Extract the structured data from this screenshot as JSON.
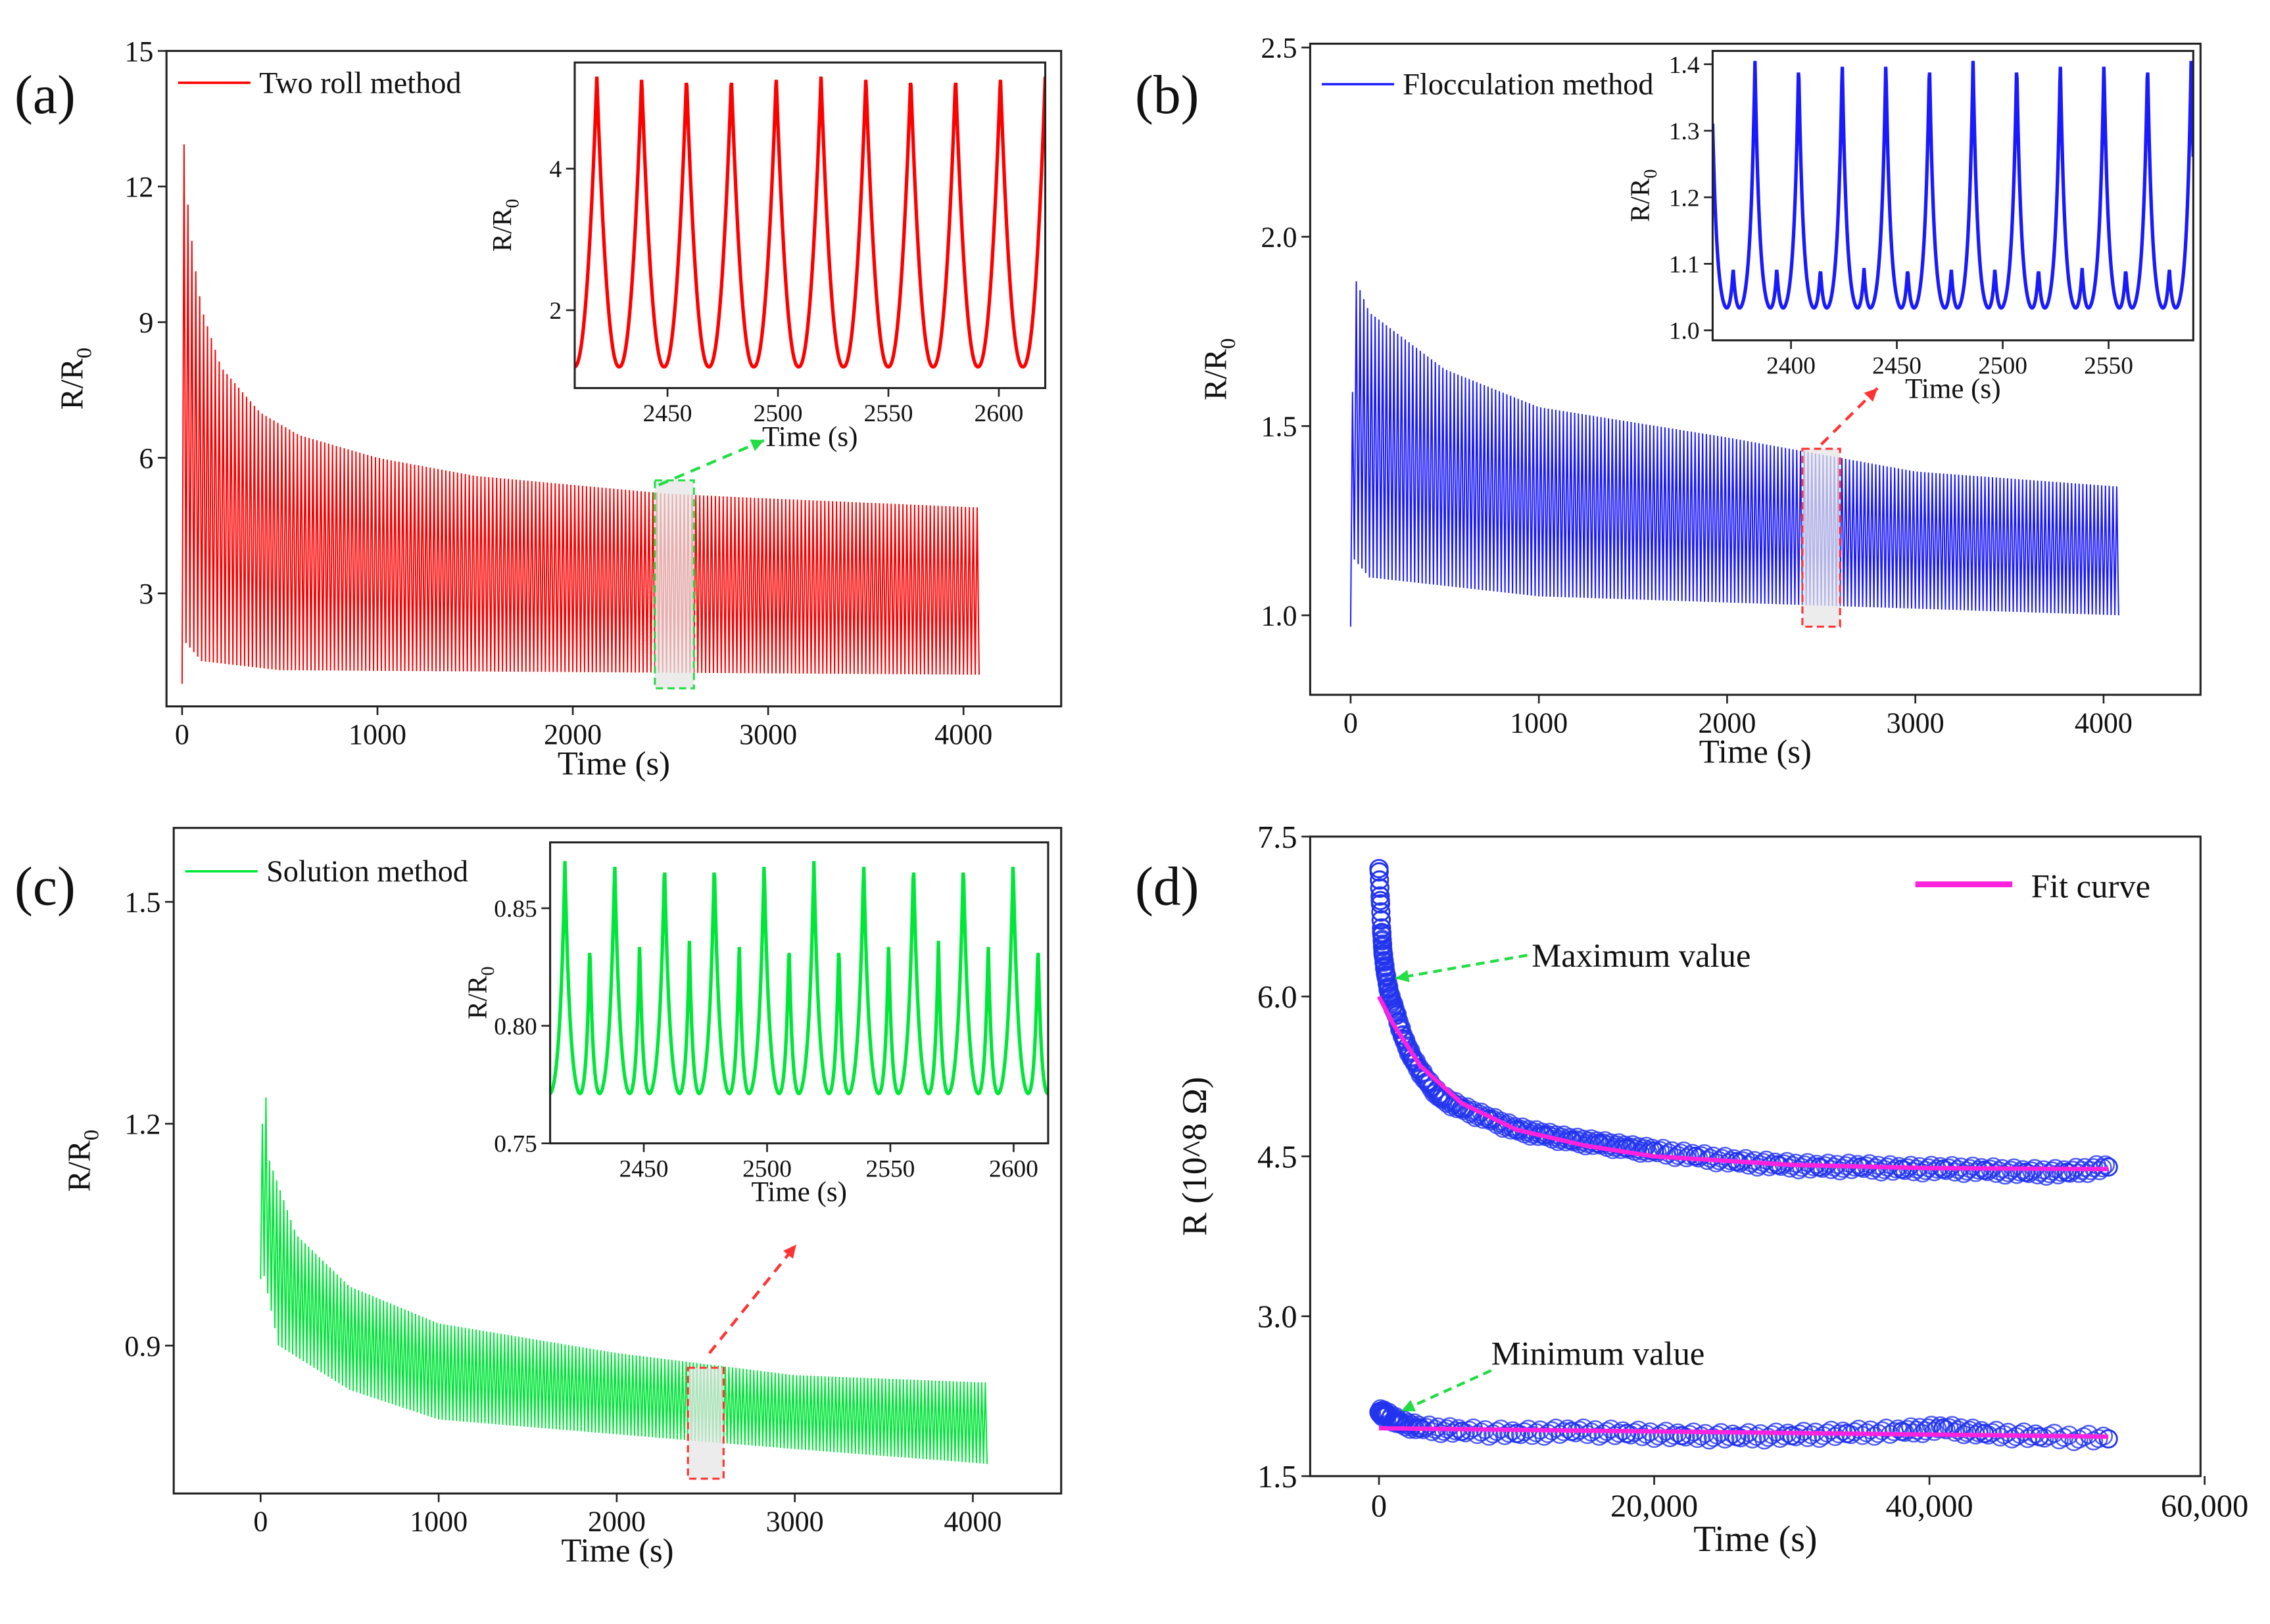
{
  "chart_data": [
    {
      "panel_label": "(a)",
      "type": "line",
      "legend": "Two roll method",
      "color": "#ff0000",
      "xlabel": "Time (s)",
      "ylabel": "R/R",
      "ylabel_sub": "0",
      "xlim": [
        -80,
        4500
      ],
      "ylim": [
        0.5,
        15
      ],
      "xticks": [
        0,
        1000,
        2000,
        3000,
        4000
      ],
      "xtick_labels": [
        "0",
        "1000",
        "2000",
        "3000",
        "4000"
      ],
      "yticks": [
        3,
        6,
        9,
        12,
        15
      ],
      "ytick_labels": [
        "3",
        "6",
        "9",
        "12",
        "15"
      ],
      "period_s": 20,
      "t_end": 4080,
      "upper_envelope": [
        [
          0,
          13.6
        ],
        [
          30,
          11.6
        ],
        [
          60,
          10.4
        ],
        [
          100,
          9.3
        ],
        [
          200,
          8.0
        ],
        [
          400,
          7.0
        ],
        [
          600,
          6.5
        ],
        [
          1000,
          6.0
        ],
        [
          1500,
          5.6
        ],
        [
          2000,
          5.4
        ],
        [
          2500,
          5.2
        ],
        [
          3000,
          5.1
        ],
        [
          4080,
          4.9
        ]
      ],
      "lower_envelope": [
        [
          0,
          1.0
        ],
        [
          20,
          1.9
        ],
        [
          100,
          1.5
        ],
        [
          500,
          1.3
        ],
        [
          4080,
          1.2
        ]
      ],
      "highlight": {
        "x": [
          2420,
          2620
        ],
        "y": [
          0.9,
          5.5
        ],
        "color": "#22dd44"
      },
      "inset": {
        "xlabel": "Time (s)",
        "ylabel": "R/R",
        "ylabel_sub": "0",
        "xlim": [
          2408,
          2621
        ],
        "ylim": [
          0.9,
          5.5
        ],
        "xticks": [
          2450,
          2500,
          2550,
          2600
        ],
        "xtick_labels": [
          "2450",
          "2500",
          "2550",
          "2600"
        ],
        "yticks": [
          2,
          4
        ],
        "ytick_labels": [
          "2",
          "4"
        ],
        "first_peak": 2418,
        "period_s": 20.3,
        "peak": 5.3,
        "trough": 1.2,
        "secondary_peak": null
      }
    },
    {
      "panel_label": "(b)",
      "type": "line",
      "legend": "Flocculation method",
      "color": "#1a1aff",
      "xlabel": "Time (s)",
      "ylabel": "R/R",
      "ylabel_sub": "0",
      "xlim": [
        -215,
        4515
      ],
      "ylim": [
        0.79,
        2.51
      ],
      "xticks": [
        0,
        1000,
        2000,
        3000,
        4000
      ],
      "xtick_labels": [
        "0",
        "1000",
        "2000",
        "3000",
        "4000"
      ],
      "yticks": [
        1.0,
        1.5,
        2.0,
        2.5
      ],
      "ytick_labels": [
        "1.0",
        "1.5",
        "2.0",
        "2.5"
      ],
      "period_s": 20,
      "t_end": 4080,
      "upper_envelope": [
        [
          0,
          0.97
        ],
        [
          15,
          1.9
        ],
        [
          100,
          1.8
        ],
        [
          500,
          1.65
        ],
        [
          1000,
          1.55
        ],
        [
          2000,
          1.47
        ],
        [
          3000,
          1.38
        ],
        [
          4080,
          1.34
        ]
      ],
      "lower_envelope": [
        [
          0,
          0.97
        ],
        [
          15,
          1.15
        ],
        [
          100,
          1.1
        ],
        [
          1000,
          1.05
        ],
        [
          4080,
          1.0
        ]
      ],
      "highlight": {
        "x": [
          2400,
          2600
        ],
        "y": [
          0.97,
          1.44
        ],
        "color": "#ff3333"
      },
      "inset": {
        "xlabel": "Time (s)",
        "ylabel": "R/R",
        "ylabel_sub": "0",
        "xlim": [
          2363,
          2590
        ],
        "ylim": [
          0.985,
          1.42
        ],
        "xticks": [
          2400,
          2450,
          2500,
          2550
        ],
        "xtick_labels": [
          "2400",
          "2450",
          "2500",
          "2550"
        ],
        "yticks": [
          1.0,
          1.1,
          1.2,
          1.3,
          1.4
        ],
        "ytick_labels": [
          "1.0",
          "1.1",
          "1.2",
          "1.3",
          "1.4"
        ],
        "first_peak": 2383,
        "period_s": 20.6,
        "peak": 1.405,
        "trough": 1.01,
        "secondary_peak": 1.09
      }
    },
    {
      "panel_label": "(c)",
      "type": "line",
      "legend": "Solution method",
      "color": "#00e639",
      "xlabel": "Time (s)",
      "ylabel": "R/R",
      "ylabel_sub": "0",
      "xlim": [
        -488,
        4496
      ],
      "ylim": [
        0.7,
        1.6
      ],
      "xticks": [
        0,
        1000,
        2000,
        3000,
        4000
      ],
      "xtick_labels": [
        "0",
        "1000",
        "2000",
        "3000",
        "4000"
      ],
      "yticks": [
        0.9,
        1.2,
        1.5
      ],
      "ytick_labels": [
        "0.9",
        "1.2",
        "1.5"
      ],
      "period_s": 20,
      "t_end": 4080,
      "upper_envelope": [
        [
          0,
          1.0
        ],
        [
          15,
          1.3
        ],
        [
          50,
          1.15
        ],
        [
          200,
          1.05
        ],
        [
          500,
          0.98
        ],
        [
          1000,
          0.93
        ],
        [
          2000,
          0.89
        ],
        [
          3000,
          0.86
        ],
        [
          4080,
          0.85
        ]
      ],
      "lower_envelope": [
        [
          0,
          0.99
        ],
        [
          15,
          1.0
        ],
        [
          100,
          0.9
        ],
        [
          500,
          0.84
        ],
        [
          1000,
          0.8
        ],
        [
          2000,
          0.78
        ],
        [
          3000,
          0.76
        ],
        [
          4080,
          0.74
        ]
      ],
      "highlight": {
        "x": [
          2400,
          2600
        ],
        "y": [
          0.72,
          0.87
        ],
        "color": "#ff3333"
      },
      "inset": {
        "xlabel": "Time (s)",
        "ylabel": "R/R",
        "ylabel_sub": "0",
        "xlim": [
          2412,
          2614
        ],
        "ylim": [
          0.75,
          0.878
        ],
        "xticks": [
          2450,
          2500,
          2550,
          2600
        ],
        "xtick_labels": [
          "2450",
          "2500",
          "2550",
          "2600"
        ],
        "yticks": [
          0.75,
          0.8,
          0.85
        ],
        "ytick_labels": [
          "0.75",
          "0.80",
          "0.85"
        ],
        "first_peak": 2418,
        "period_s": 20.2,
        "peak": 0.87,
        "trough": 0.76,
        "secondary_peak": 0.835
      }
    },
    {
      "panel_label": "(d)",
      "type": "scatter",
      "legend": "Fit curve",
      "color": "#2233ee",
      "fit_color": "#ff22dd",
      "xlabel": "Time (s)",
      "ylabel": "R (10^8 Ω)",
      "xlim": [
        -5000,
        59700
      ],
      "ylim": [
        1.5,
        7.5
      ],
      "xticks": [
        0,
        20000,
        40000,
        60000
      ],
      "xtick_labels": [
        "0",
        "20,000",
        "40,000",
        "60,000"
      ],
      "yticks": [
        1.5,
        3.0,
        4.5,
        6.0,
        7.5
      ],
      "ytick_labels": [
        "1.5",
        "3.0",
        "4.5",
        "6.0",
        "7.5"
      ],
      "annotations": [
        "Maximum value",
        "Minimum value"
      ],
      "series": [
        {
          "name": "Maximum value",
          "points": [
            [
              0,
              7.2
            ],
            [
              100,
              6.9
            ],
            [
              200,
              6.6
            ],
            [
              300,
              6.4
            ],
            [
              500,
              6.2
            ],
            [
              800,
              6.0
            ],
            [
              1200,
              5.85
            ],
            [
              1800,
              5.6
            ],
            [
              2500,
              5.4
            ],
            [
              3500,
              5.2
            ],
            [
              4500,
              5.05
            ],
            [
              6000,
              4.95
            ],
            [
              8000,
              4.85
            ],
            [
              10000,
              4.75
            ],
            [
              12000,
              4.7
            ],
            [
              14000,
              4.65
            ],
            [
              16000,
              4.62
            ],
            [
              18000,
              4.58
            ],
            [
              20000,
              4.55
            ],
            [
              23000,
              4.5
            ],
            [
              26000,
              4.45
            ],
            [
              29000,
              4.42
            ],
            [
              32000,
              4.4
            ],
            [
              35000,
              4.4
            ],
            [
              38000,
              4.38
            ],
            [
              41000,
              4.38
            ],
            [
              44000,
              4.37
            ],
            [
              47000,
              4.35
            ],
            [
              50000,
              4.35
            ],
            [
              53000,
              4.4
            ]
          ]
        },
        {
          "name": "Minimum value",
          "points": [
            [
              0,
              2.1
            ],
            [
              500,
              2.08
            ],
            [
              1500,
              2.0
            ],
            [
              3000,
              1.95
            ],
            [
              6000,
              1.92
            ],
            [
              10000,
              1.9
            ],
            [
              14000,
              1.92
            ],
            [
              18000,
              1.9
            ],
            [
              22000,
              1.88
            ],
            [
              26000,
              1.87
            ],
            [
              30000,
              1.88
            ],
            [
              34000,
              1.9
            ],
            [
              38000,
              1.92
            ],
            [
              41000,
              1.95
            ],
            [
              44000,
              1.9
            ],
            [
              48000,
              1.87
            ],
            [
              53000,
              1.85
            ]
          ]
        }
      ],
      "fits": [
        {
          "name": "Fit curve (max)",
          "points": [
            [
              0,
              6.0
            ],
            [
              1000,
              5.75
            ],
            [
              3000,
              5.35
            ],
            [
              6000,
              5.0
            ],
            [
              10000,
              4.75
            ],
            [
              15000,
              4.6
            ],
            [
              20000,
              4.5
            ],
            [
              30000,
              4.42
            ],
            [
              40000,
              4.39
            ],
            [
              53000,
              4.38
            ]
          ]
        },
        {
          "name": "Fit curve (min)",
          "points": [
            [
              0,
              1.95
            ],
            [
              53000,
              1.87
            ]
          ]
        }
      ]
    }
  ]
}
